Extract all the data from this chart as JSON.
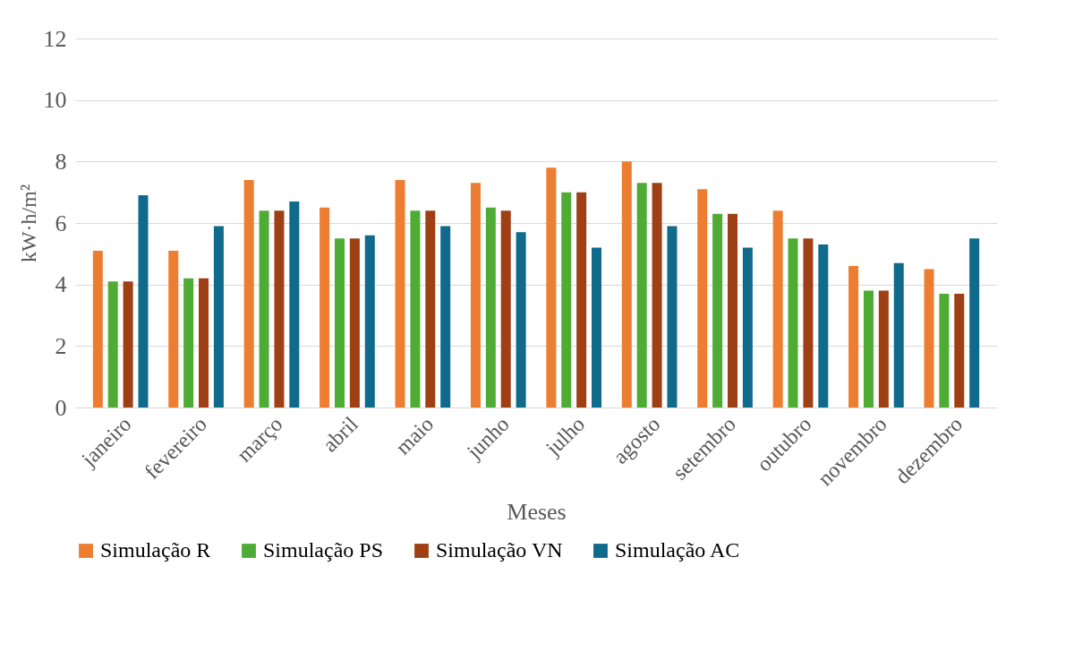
{
  "chart_data": {
    "type": "bar",
    "xlabel": "Meses",
    "ylabel": "kW·h/m²",
    "categories": [
      "janeiro",
      "fevereiro",
      "março",
      "abril",
      "maio",
      "junho",
      "julho",
      "agosto",
      "setembro",
      "outubro",
      "novembro",
      "dezembro"
    ],
    "series": [
      {
        "name": "Simulação R",
        "color": "#ed7d31",
        "values": [
          5.1,
          5.1,
          7.4,
          6.5,
          7.4,
          7.3,
          7.8,
          8.0,
          7.1,
          6.4,
          4.6,
          4.5
        ]
      },
      {
        "name": "Simulação PS",
        "color": "#4eac34",
        "values": [
          4.1,
          4.2,
          6.4,
          5.5,
          6.4,
          6.5,
          7.0,
          7.3,
          6.3,
          5.5,
          3.8,
          3.7
        ]
      },
      {
        "name": "Simulação VN",
        "color": "#9e3f14",
        "values": [
          4.1,
          4.2,
          6.4,
          5.5,
          6.4,
          6.4,
          7.0,
          7.3,
          6.3,
          5.5,
          3.8,
          3.7
        ]
      },
      {
        "name": "Simulação AC",
        "color": "#0f6a8b",
        "values": [
          6.9,
          5.9,
          6.7,
          5.6,
          5.9,
          5.7,
          5.2,
          5.9,
          5.2,
          5.3,
          4.7,
          5.5
        ]
      }
    ],
    "ylim": [
      0,
      12
    ],
    "yticks": [
      0,
      2,
      4,
      6,
      8,
      10,
      12
    ],
    "grid": "y",
    "legend": "bottom"
  }
}
